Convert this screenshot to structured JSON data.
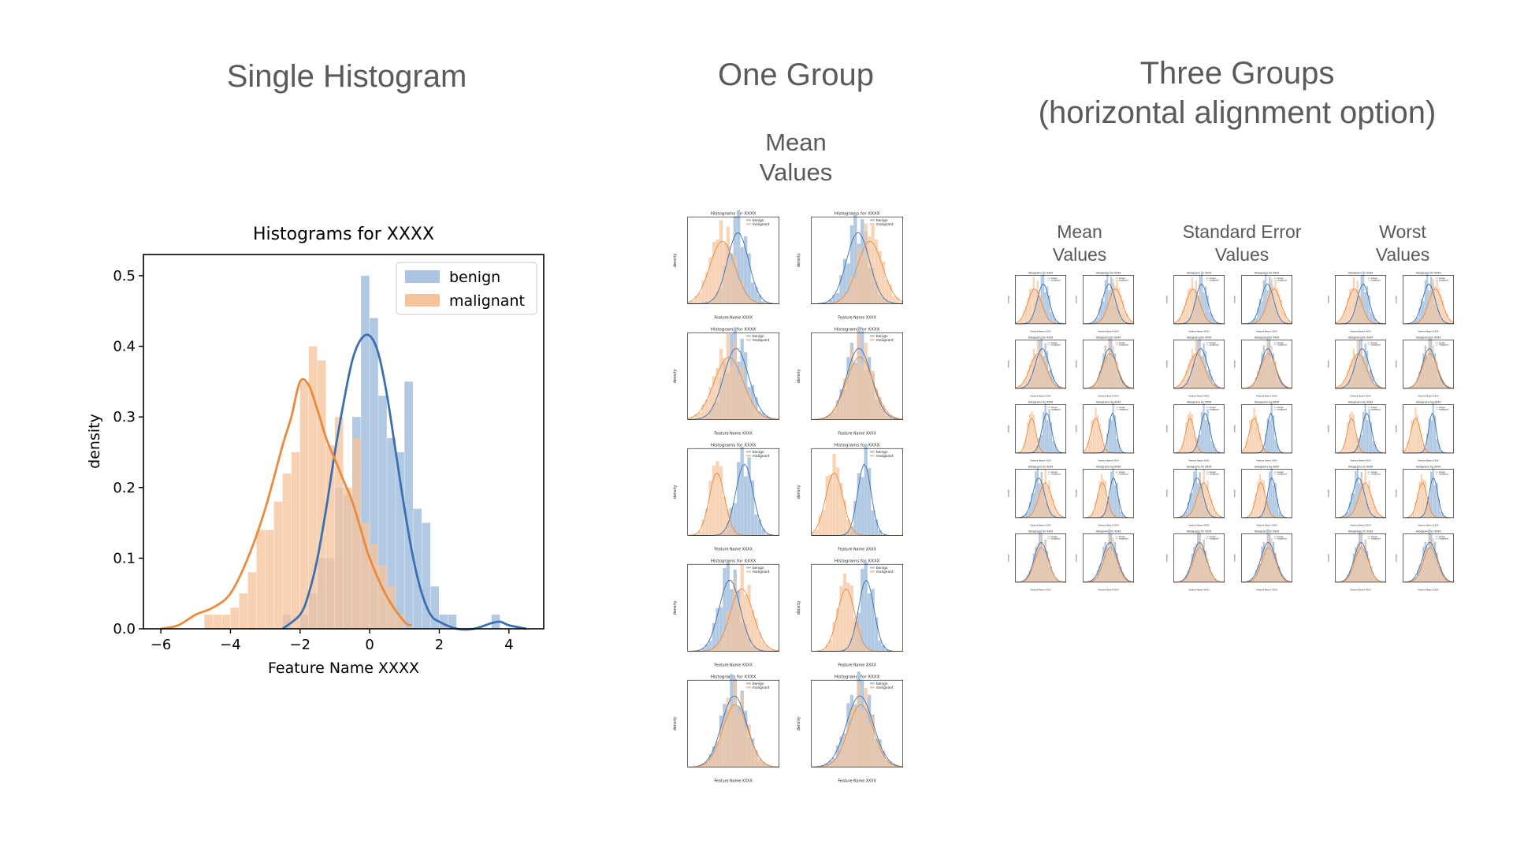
{
  "sections": {
    "single": {
      "title": "Single Histogram"
    },
    "one_group": {
      "title": "One Group",
      "subtitle_line1": "Mean",
      "subtitle_line2": "Values"
    },
    "three_groups": {
      "title_line1": "Three Groups",
      "title_line2": "(horizontal alignment option)",
      "groups": [
        {
          "line1": "Mean",
          "line2": "Values"
        },
        {
          "line1": "Standard Error",
          "line2": "Values"
        },
        {
          "line1": "Worst",
          "line2": "Values"
        }
      ]
    }
  },
  "colors": {
    "benign": "#3b6fb0",
    "benign_fill": "#a9c3e0",
    "malignant": "#ea8a3c",
    "malignant_fill": "#f5c49c",
    "title_gray": "#5a5a5a"
  },
  "chart_data": [
    {
      "type": "bar",
      "title": "Histograms for XXXX",
      "xlabel": "Feature Name XXXX",
      "ylabel": "density",
      "xlim": [
        -6.5,
        5
      ],
      "ylim": [
        0,
        0.53
      ],
      "xticks": [
        -6,
        -4,
        -2,
        0,
        2,
        4
      ],
      "xtick_labels": [
        "−6",
        "−4",
        "−2",
        "0",
        "2",
        "4"
      ],
      "yticks": [
        0.0,
        0.1,
        0.2,
        0.3,
        0.4,
        0.5
      ],
      "ytick_labels": [
        "0.0",
        "0.1",
        "0.2",
        "0.3",
        "0.4",
        "0.5"
      ],
      "legend_position": "top-right",
      "bin_width": 0.25,
      "series": [
        {
          "name": "benign",
          "histogram": {
            "bin_starts": [
              -2.5,
              -2.25,
              -2.0,
              -1.75,
              -1.5,
              -1.25,
              -1.0,
              -0.75,
              -0.5,
              -0.25,
              0.0,
              0.25,
              0.5,
              0.75,
              1.0,
              1.25,
              1.5,
              1.75,
              2.0,
              2.25,
              3.5
            ],
            "values": [
              0.02,
              0.0,
              0.02,
              0.05,
              0.1,
              0.1,
              0.2,
              0.19,
              0.3,
              0.5,
              0.44,
              0.33,
              0.27,
              0.25,
              0.35,
              0.17,
              0.15,
              0.06,
              0.02,
              0.02,
              0.02
            ]
          },
          "kde": {
            "x": [
              -2.5,
              -2.0,
              -1.75,
              -1.5,
              -1.25,
              -1.0,
              -0.75,
              -0.5,
              -0.25,
              0.0,
              0.25,
              0.5,
              0.75,
              1.0,
              1.25,
              1.5,
              1.75,
              2.0,
              2.5,
              3.0,
              3.5,
              3.75,
              4.0,
              4.5
            ],
            "y": [
              0.0,
              0.02,
              0.05,
              0.1,
              0.17,
              0.25,
              0.32,
              0.38,
              0.41,
              0.415,
              0.39,
              0.33,
              0.25,
              0.17,
              0.1,
              0.05,
              0.02,
              0.01,
              0.0,
              0.0,
              0.008,
              0.01,
              0.005,
              0.0
            ]
          }
        },
        {
          "name": "malignant",
          "histogram": {
            "bin_starts": [
              -4.75,
              -4.5,
              -4.25,
              -4.0,
              -3.75,
              -3.5,
              -3.25,
              -3.0,
              -2.75,
              -2.5,
              -2.25,
              -2.0,
              -1.75,
              -1.5,
              -1.25,
              -1.0,
              -0.75,
              -0.5,
              -0.25,
              0.0,
              0.25,
              0.5,
              0.75
            ],
            "values": [
              0.02,
              0.02,
              0.02,
              0.03,
              0.05,
              0.08,
              0.14,
              0.14,
              0.18,
              0.22,
              0.25,
              0.35,
              0.4,
              0.38,
              0.26,
              0.3,
              0.2,
              0.27,
              0.15,
              0.12,
              0.09,
              0.06,
              0.02
            ]
          },
          "kde": {
            "x": [
              -6.0,
              -5.5,
              -5.0,
              -4.5,
              -4.0,
              -3.5,
              -3.0,
              -2.5,
              -2.25,
              -2.0,
              -1.75,
              -1.5,
              -1.25,
              -1.0,
              -0.75,
              -0.5,
              -0.25,
              0.0,
              0.5,
              1.0,
              1.2
            ],
            "y": [
              0.0,
              0.005,
              0.02,
              0.03,
              0.05,
              0.1,
              0.17,
              0.26,
              0.3,
              0.35,
              0.345,
              0.31,
              0.27,
              0.24,
              0.21,
              0.18,
              0.14,
              0.1,
              0.045,
              0.01,
              0.005
            ]
          }
        }
      ]
    }
  ],
  "mini": {
    "title": "Histograms for XXXX",
    "xlabel": "Feature Name XXXX",
    "ylabel": "density",
    "legend": [
      "benign",
      "malignant"
    ]
  }
}
